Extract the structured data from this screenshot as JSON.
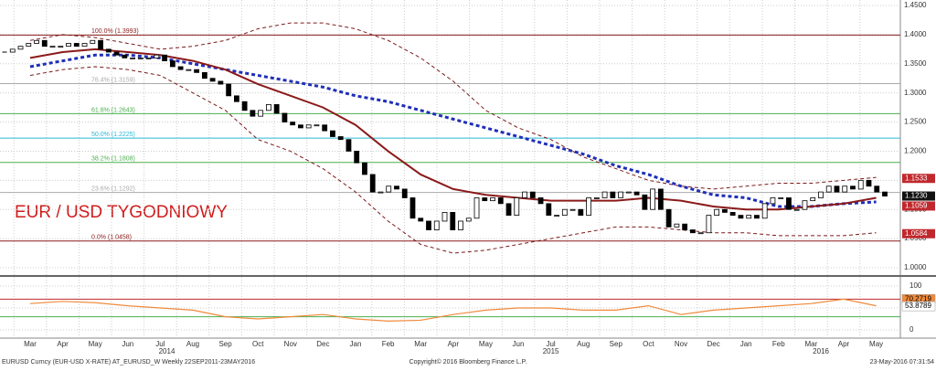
{
  "chart_data": {
    "type": "candlestick",
    "title": "EUR / USD TYGODNIOWY",
    "footer_left": "EURUSD Curncy (EUR-USD X-RATE) AT_EURUSD_W  Weekly 22SEP2011-23MAY2016",
    "footer_center": "Copyright© 2016 Bloomberg Finance L.P.",
    "footer_right": "23-May-2016 07:31:54",
    "categories": [
      "Mar",
      "Apr",
      "May",
      "Jun",
      "Jul",
      "Aug",
      "Sep",
      "Oct",
      "Nov",
      "Dec",
      "Jan",
      "Feb",
      "Mar",
      "Apr",
      "May",
      "Jun",
      "Jul",
      "Aug",
      "Sep",
      "Oct",
      "Nov",
      "Dec",
      "Jan",
      "Feb",
      "Mar",
      "Apr",
      "May"
    ],
    "years": [
      "2014",
      "2015",
      "2016"
    ],
    "ylim": [
      1.0,
      1.45
    ],
    "yticks": [
      {
        "value": 1.45,
        "label": "1.4500"
      },
      {
        "value": 1.4,
        "label": "1.4000"
      },
      {
        "value": 1.35,
        "label": "1.3500"
      },
      {
        "value": 1.3,
        "label": "1.3000"
      },
      {
        "value": 1.25,
        "label": "1.2500"
      },
      {
        "value": 1.2,
        "label": "1.2000"
      },
      {
        "value": 1.15,
        "label": "1.1500"
      },
      {
        "value": 1.1,
        "label": "1.1000"
      },
      {
        "value": 1.05,
        "label": "1.0500"
      },
      {
        "value": 1.0,
        "label": "1.0000"
      }
    ],
    "grid": true,
    "closes": [
      1.37,
      1.375,
      1.38,
      1.385,
      1.39,
      1.38,
      1.38,
      1.38,
      1.385,
      1.38,
      1.385,
      1.39,
      1.375,
      1.37,
      1.365,
      1.36,
      1.36,
      1.36,
      1.36,
      1.365,
      1.355,
      1.345,
      1.34,
      1.34,
      1.335,
      1.325,
      1.32,
      1.315,
      1.295,
      1.285,
      1.27,
      1.26,
      1.27,
      1.28,
      1.265,
      1.25,
      1.245,
      1.24,
      1.245,
      1.245,
      1.235,
      1.225,
      1.22,
      1.2,
      1.18,
      1.16,
      1.13,
      1.13,
      1.14,
      1.135,
      1.12,
      1.085,
      1.08,
      1.065,
      1.08,
      1.095,
      1.065,
      1.08,
      1.085,
      1.12,
      1.115,
      1.12,
      1.11,
      1.09,
      1.12,
      1.13,
      1.12,
      1.11,
      1.09,
      1.09,
      1.1,
      1.1,
      1.09,
      1.12,
      1.12,
      1.13,
      1.12,
      1.13,
      1.13,
      1.125,
      1.1,
      1.135,
      1.1,
      1.07,
      1.075,
      1.065,
      1.06,
      1.06,
      1.09,
      1.1,
      1.095,
      1.09,
      1.085,
      1.09,
      1.085,
      1.11,
      1.12,
      1.12,
      1.1,
      1.1,
      1.115,
      1.12,
      1.13,
      1.14,
      1.13,
      1.14,
      1.135,
      1.15,
      1.14,
      1.13,
      1.123
    ],
    "series": [
      {
        "name": "Upper band",
        "color": "#7a1a1a",
        "dash": true,
        "values": [
          1.39,
          1.4,
          1.395,
          1.385,
          1.375,
          1.38,
          1.39,
          1.41,
          1.42,
          1.42,
          1.41,
          1.39,
          1.36,
          1.32,
          1.27,
          1.24,
          1.22,
          1.19,
          1.17,
          1.15,
          1.14,
          1.135,
          1.14,
          1.145,
          1.145,
          1.15,
          1.155
        ]
      },
      {
        "name": "Lower band",
        "color": "#7a1a1a",
        "dash": true,
        "values": [
          1.33,
          1.34,
          1.345,
          1.34,
          1.33,
          1.3,
          1.27,
          1.22,
          1.2,
          1.17,
          1.13,
          1.08,
          1.04,
          1.025,
          1.03,
          1.04,
          1.05,
          1.06,
          1.07,
          1.07,
          1.065,
          1.06,
          1.06,
          1.055,
          1.055,
          1.055,
          1.06
        ]
      },
      {
        "name": "MA long",
        "color": "#1f2fb8",
        "dash": true,
        "width": 3,
        "values": [
          1.345,
          1.355,
          1.365,
          1.365,
          1.36,
          1.35,
          1.34,
          1.33,
          1.32,
          1.31,
          1.295,
          1.285,
          1.27,
          1.255,
          1.24,
          1.225,
          1.21,
          1.195,
          1.175,
          1.16,
          1.14,
          1.125,
          1.12,
          1.105,
          1.105,
          1.11,
          1.113
        ]
      },
      {
        "name": "MA mid",
        "color": "#8b1a1a",
        "width": 2,
        "values": [
          1.36,
          1.37,
          1.375,
          1.37,
          1.365,
          1.355,
          1.34,
          1.315,
          1.295,
          1.275,
          1.245,
          1.2,
          1.16,
          1.135,
          1.125,
          1.12,
          1.115,
          1.115,
          1.115,
          1.12,
          1.115,
          1.105,
          1.1,
          1.1,
          1.105,
          1.11,
          1.12
        ]
      }
    ],
    "levels": [
      {
        "value": 1.3993,
        "label": "100.0% (1.3993)",
        "color": "#8b1a1a"
      },
      {
        "value": 1.3159,
        "label": "76.4% (1.3159)",
        "color": "#aaaaaa"
      },
      {
        "value": 1.2643,
        "label": "61.8% (1.2643)",
        "color": "#4caf50"
      },
      {
        "value": 1.2225,
        "label": "50.0% (1.2225)",
        "color": "#2ab8d8"
      },
      {
        "value": 1.1808,
        "label": "38.2% (1.1808)",
        "color": "#4caf50"
      },
      {
        "value": 1.1292,
        "label": "23.6% (1.1292)",
        "color": "#aaaaaa"
      },
      {
        "value": 1.0458,
        "label": "0.0% (1.0458)",
        "color": "#8b1a1a"
      }
    ],
    "price_tags": [
      {
        "value": 1.1533,
        "label": "1.1533",
        "color": "#c0282d"
      },
      {
        "value": 1.123,
        "label": "1.1230",
        "color": "#111111"
      },
      {
        "value": 1.1059,
        "label": "1.1059",
        "color": "#c0282d"
      },
      {
        "value": 1.0584,
        "label": "1.0584",
        "color": "#c0282d"
      }
    ],
    "rsi": {
      "ylim": [
        0,
        100
      ],
      "yticks": [
        100,
        50,
        0
      ],
      "upper": 70,
      "lower": 30,
      "color": "#f08a3c",
      "values": [
        60,
        65,
        62,
        55,
        50,
        45,
        30,
        25,
        30,
        35,
        25,
        20,
        22,
        35,
        45,
        50,
        50,
        45,
        45,
        55,
        35,
        45,
        50,
        55,
        60,
        70,
        55
      ],
      "tags": [
        {
          "value": 70.2719,
          "label": "70.2719",
          "color": "#f08a3c"
        },
        {
          "value": 53.8789,
          "label": "53.8789",
          "color": "#ffffff"
        }
      ]
    }
  }
}
